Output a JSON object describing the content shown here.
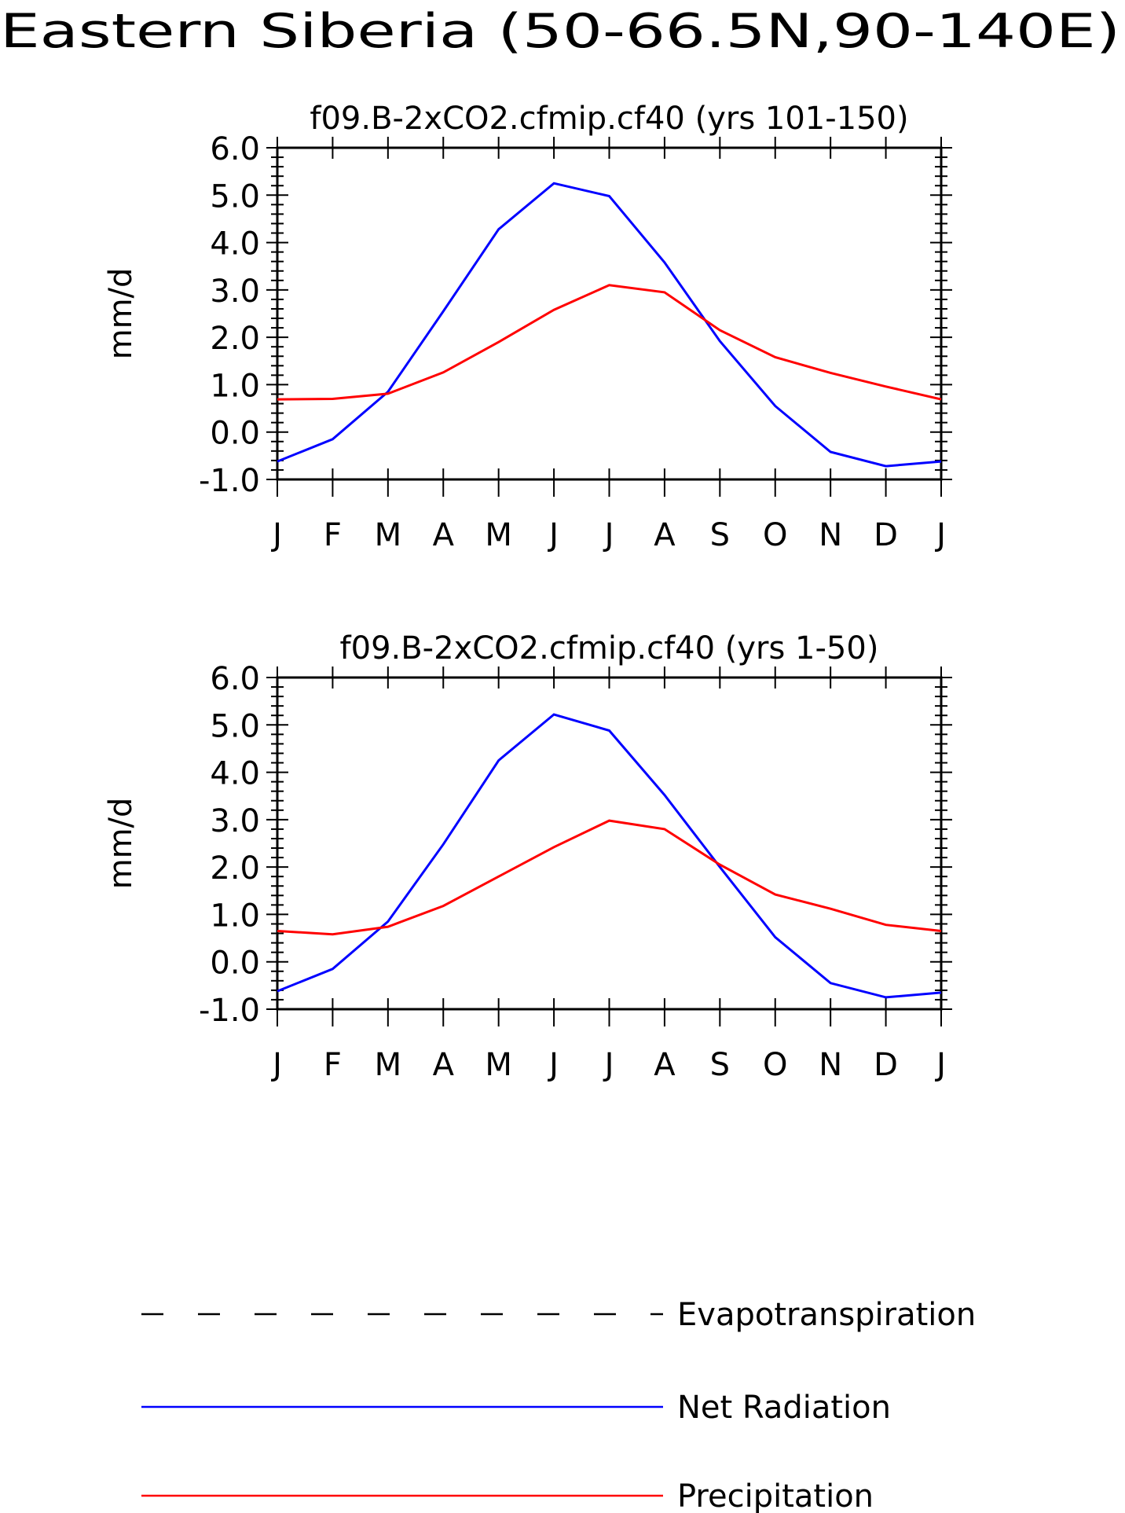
{
  "figure": {
    "title": "Eastern Siberia (50-66.5N,90-140E)"
  },
  "colors": {
    "net_radiation": "#0000ff",
    "precipitation": "#ff0000",
    "evapotranspiration": "#000000",
    "axes": "#000000",
    "background": "#ffffff"
  },
  "legend": {
    "position": "bottom",
    "items": [
      {
        "label": "Evapotranspiration",
        "style": "dashed",
        "color": "#000000"
      },
      {
        "label": "Net Radiation",
        "style": "solid",
        "color": "#0000ff"
      },
      {
        "label": "Precipitation",
        "style": "solid",
        "color": "#ff0000"
      }
    ]
  },
  "chart_data": [
    {
      "type": "line",
      "title": "f09.B-2xCO2.cfmip.cf40 (yrs 101-150)",
      "xlabel": "",
      "ylabel": "mm/d",
      "categories": [
        "J",
        "F",
        "M",
        "A",
        "M",
        "J",
        "J",
        "A",
        "S",
        "O",
        "N",
        "D",
        "J"
      ],
      "ylim": [
        -1.0,
        6.0
      ],
      "yticks": [
        "-1.0",
        "0.0",
        "1.0",
        "2.0",
        "3.0",
        "4.0",
        "5.0",
        "6.0"
      ],
      "grid": false,
      "series": [
        {
          "name": "Net Radiation",
          "values": [
            -0.62,
            -0.15,
            0.85,
            2.55,
            4.28,
            5.25,
            4.98,
            3.58,
            1.92,
            0.55,
            -0.42,
            -0.72,
            -0.62
          ]
        },
        {
          "name": "Precipitation",
          "values": [
            0.69,
            0.7,
            0.81,
            1.26,
            1.9,
            2.58,
            3.1,
            2.95,
            2.15,
            1.58,
            1.25,
            0.96,
            0.69
          ]
        }
      ]
    },
    {
      "type": "line",
      "title": "f09.B-2xCO2.cfmip.cf40 (yrs 1-50)",
      "xlabel": "",
      "ylabel": "mm/d",
      "categories": [
        "J",
        "F",
        "M",
        "A",
        "M",
        "J",
        "J",
        "A",
        "S",
        "O",
        "N",
        "D",
        "J"
      ],
      "ylim": [
        -1.0,
        6.0
      ],
      "yticks": [
        "-1.0",
        "0.0",
        "1.0",
        "2.0",
        "3.0",
        "4.0",
        "5.0",
        "6.0"
      ],
      "grid": false,
      "series": [
        {
          "name": "Net Radiation",
          "values": [
            -0.62,
            -0.15,
            0.85,
            2.48,
            4.25,
            5.22,
            4.88,
            3.52,
            2.0,
            0.52,
            -0.45,
            -0.75,
            -0.65
          ]
        },
        {
          "name": "Precipitation",
          "values": [
            0.65,
            0.58,
            0.74,
            1.18,
            1.8,
            2.42,
            2.98,
            2.8,
            2.05,
            1.42,
            1.12,
            0.78,
            0.65
          ]
        }
      ]
    }
  ]
}
